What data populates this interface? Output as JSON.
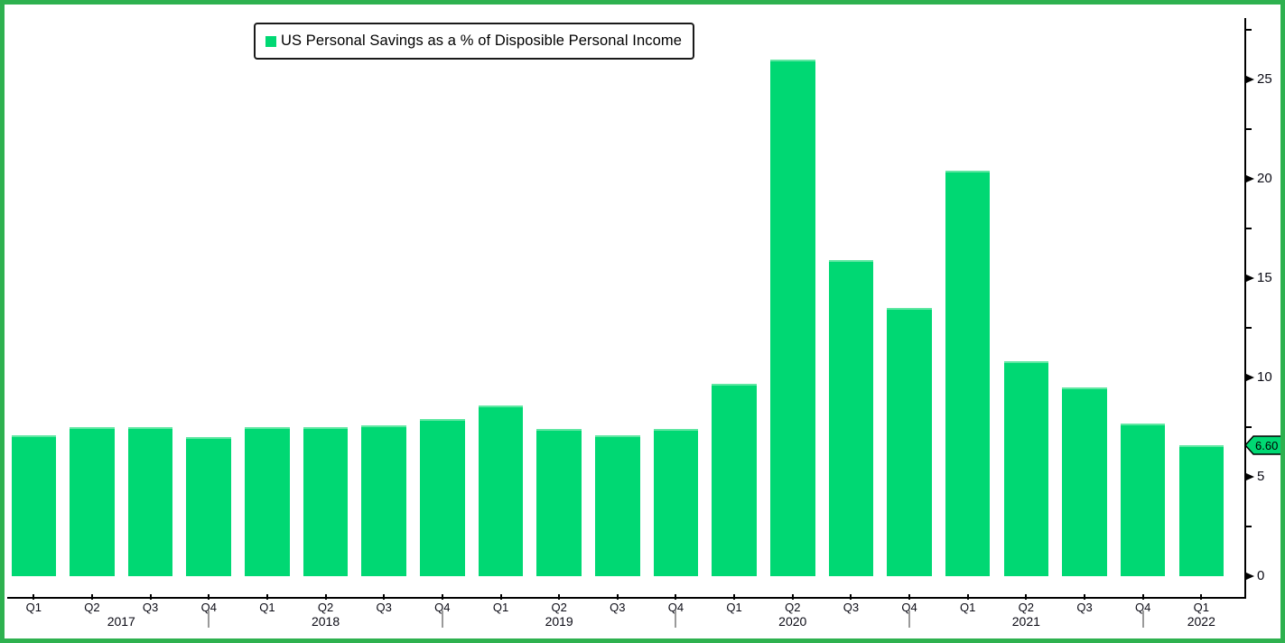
{
  "legend": {
    "label": "US Personal Savings as a % of Disposible Personal Income"
  },
  "last_value_tag": "6.60",
  "colors": {
    "bar": "#00d873",
    "bar_top_highlight": "#5fe7a2",
    "frame_border": "#2eb14f",
    "axis": "#000000",
    "year_separator": "#9a9a9a",
    "tag_fill": "#00d873"
  },
  "y_axis": {
    "major_ticks": [
      0,
      5,
      10,
      15,
      20,
      25
    ],
    "minor_ticks": [
      2.5,
      7.5,
      12.5,
      17.5,
      22.5,
      27.5
    ],
    "max": 28.1
  },
  "x_axis": {
    "years": [
      {
        "label": "2017",
        "quarters": [
          "Q1",
          "Q2",
          "Q3",
          "Q4"
        ]
      },
      {
        "label": "2018",
        "quarters": [
          "Q1",
          "Q2",
          "Q3",
          "Q4"
        ]
      },
      {
        "label": "2019",
        "quarters": [
          "Q1",
          "Q2",
          "Q3",
          "Q4"
        ]
      },
      {
        "label": "2020",
        "quarters": [
          "Q1",
          "Q2",
          "Q3",
          "Q4"
        ]
      },
      {
        "label": "2021",
        "quarters": [
          "Q1",
          "Q2",
          "Q3",
          "Q4"
        ]
      },
      {
        "label": "2022",
        "quarters": [
          "Q1"
        ]
      }
    ]
  },
  "chart_data": {
    "type": "bar",
    "title": "US Personal Savings as a % of Disposible Personal Income",
    "categories": [
      "Q1 2017",
      "Q2 2017",
      "Q3 2017",
      "Q4 2017",
      "Q1 2018",
      "Q2 2018",
      "Q3 2018",
      "Q4 2018",
      "Q1 2019",
      "Q2 2019",
      "Q3 2019",
      "Q4 2019",
      "Q1 2020",
      "Q2 2020",
      "Q3 2020",
      "Q4 2020",
      "Q1 2021",
      "Q2 2021",
      "Q3 2021",
      "Q4 2021",
      "Q1 2022"
    ],
    "values": [
      7.1,
      7.5,
      7.5,
      7.0,
      7.5,
      7.5,
      7.6,
      7.9,
      8.6,
      7.4,
      7.1,
      7.4,
      9.7,
      26.0,
      15.9,
      13.5,
      20.4,
      10.8,
      9.5,
      7.7,
      6.6
    ],
    "xlabel": "",
    "ylabel": "",
    "ylim": [
      0,
      28.1
    ],
    "grid": false,
    "legend_position": "top-left",
    "last_point_label": "6.60",
    "bar_color": "#00d873"
  }
}
